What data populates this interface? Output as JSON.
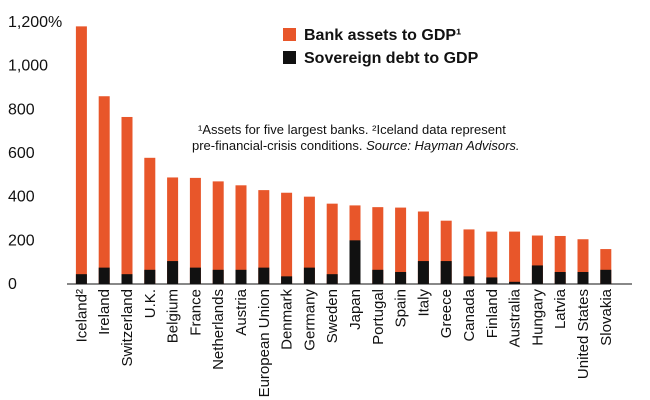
{
  "chart_data": {
    "type": "bar",
    "stacking": "overlay",
    "categories": [
      "Iceland²",
      "Ireland",
      "Switzerland",
      "U.K.",
      "Belgium",
      "France",
      "Netherlands",
      "Austria",
      "European Union",
      "Denmark",
      "Germany",
      "Sweden",
      "Japan",
      "Portugal",
      "Spain",
      "Italy",
      "Greece",
      "Canada",
      "Finland",
      "Australia",
      "Hungary",
      "Latvia",
      "United States",
      "Slovakia"
    ],
    "series": [
      {
        "name": "Bank assets to GDP¹",
        "color": "#e8562a",
        "values": [
          1180,
          860,
          765,
          578,
          488,
          486,
          470,
          452,
          430,
          418,
          400,
          368,
          360,
          352,
          350,
          332,
          290,
          250,
          240,
          240,
          222,
          220,
          205,
          160
        ]
      },
      {
        "name": "Sovereign debt to GDP",
        "color": "#111111",
        "values": [
          45,
          75,
          45,
          65,
          105,
          75,
          65,
          65,
          75,
          35,
          75,
          45,
          200,
          65,
          55,
          105,
          105,
          35,
          30,
          10,
          85,
          55,
          55,
          65
        ]
      }
    ],
    "yticks": [
      "0",
      "200",
      "400",
      "600",
      "800",
      "1,000",
      "1,200%"
    ],
    "ylim": [
      0,
      1200
    ],
    "legend_position": "top-right",
    "note": {
      "line1": "¹Assets for five largest banks. ²Iceland data represent",
      "line2_plain": "pre-financial-crisis conditions. ",
      "line2_italic": "Source: Hayman Advisors."
    },
    "grid": false
  }
}
